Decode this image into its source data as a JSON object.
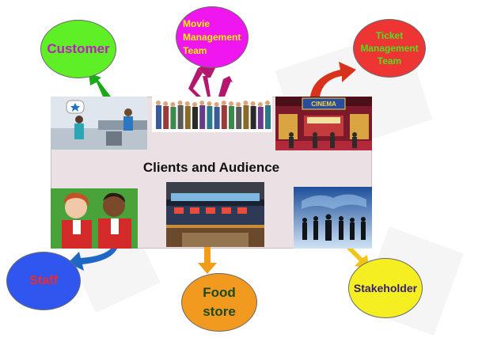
{
  "center": {
    "title": "Clients and Audience"
  },
  "nodes": {
    "customer": {
      "label": "Customer",
      "fill": "#5fef26",
      "text_color": "#c01cc6"
    },
    "movie": {
      "label": "Movie\nManagement\nTeam",
      "fill": "#ef16ef",
      "text_color": "#f6f400"
    },
    "ticket": {
      "label": "Ticket\nManagement\nTeam",
      "fill": "#ef3434",
      "text_color": "#4ce21c"
    },
    "staff": {
      "label": "Staff",
      "fill": "#2f57ef",
      "text_color": "#ef2a2a"
    },
    "food": {
      "label": "Food\nstore",
      "fill": "#f29a20",
      "text_color": "#1d4a17"
    },
    "stakeholder": {
      "label": "Stakeholder",
      "fill": "#f5ef22",
      "text_color": "#35216e"
    }
  },
  "arrows": {
    "customer": "#19a919",
    "movie": "#b3176f",
    "ticket": "#d8321c",
    "staff": "#1f67c6",
    "food": "#f39c17",
    "stakeholder": "#f2c418"
  },
  "images": {
    "service_counter": "service-counter-illustration",
    "crowd": "crowd-of-people-illustration",
    "cinema": "cinema-storefront-illustration",
    "staff": "staff-uniform-illustration",
    "concession": "concession-stand-photo",
    "business": "business-silhouettes-photo"
  }
}
